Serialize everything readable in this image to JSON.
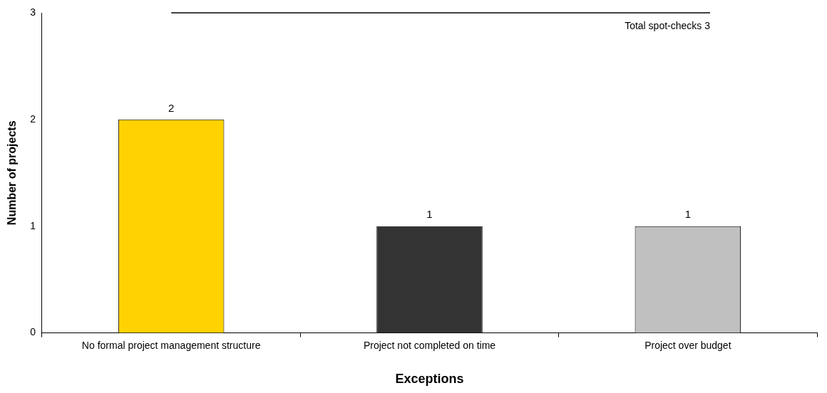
{
  "chart_data": {
    "type": "bar",
    "xlabel": "Exceptions",
    "ylabel": "Number of projects",
    "categories": [
      "No formal project management structure",
      "Project not completed on time",
      "Project over budget"
    ],
    "values": [
      2,
      1,
      1
    ],
    "colors": [
      "#ffd200",
      "#333333",
      "#c0c0c0"
    ],
    "ylim": [
      0,
      3
    ],
    "yticks": [
      0,
      1,
      2,
      3
    ],
    "grid": false,
    "legend": false,
    "data_labels": true,
    "ref_lines": [
      {
        "axis": "y",
        "value": 3,
        "label": "Total spot-checks 3",
        "color": "#000000"
      }
    ]
  }
}
